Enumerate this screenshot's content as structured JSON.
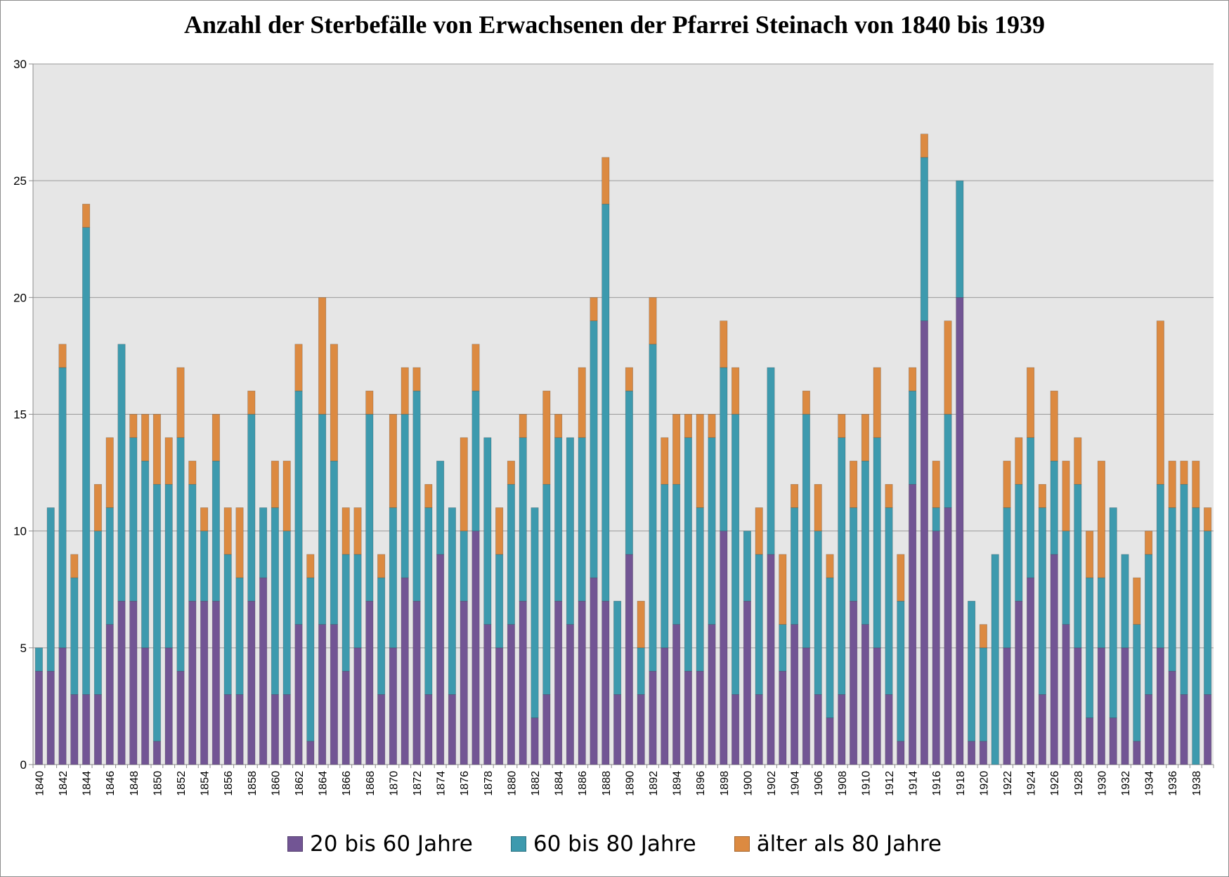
{
  "colors": {
    "s1": "#725594",
    "s2": "#3d9aae",
    "s3": "#dc8a41",
    "plot_bg": "#e6e6e6",
    "grid": "#9a9a9a"
  },
  "chart_data": {
    "type": "bar",
    "stacked": true,
    "title": "Anzahl der Sterbefälle von Erwachsenen der Pfarrei Steinach von 1840 bis 1939",
    "xlabel": "",
    "ylabel": "",
    "ylim": [
      0,
      30
    ],
    "yticks": [
      0,
      5,
      10,
      15,
      20,
      25,
      30
    ],
    "grid": true,
    "legend_position": "bottom",
    "categories": [
      "1840",
      "1841",
      "1842",
      "1843",
      "1844",
      "1845",
      "1846",
      "1847",
      "1848",
      "1849",
      "1850",
      "1851",
      "1852",
      "1853",
      "1854",
      "1855",
      "1856",
      "1857",
      "1858",
      "1859",
      "1860",
      "1861",
      "1862",
      "1863",
      "1864",
      "1865",
      "1866",
      "1867",
      "1868",
      "1869",
      "1870",
      "1871",
      "1872",
      "1873",
      "1874",
      "1875",
      "1876",
      "1877",
      "1878",
      "1879",
      "1880",
      "1881",
      "1882",
      "1883",
      "1884",
      "1885",
      "1886",
      "1887",
      "1888",
      "1889",
      "1890",
      "1891",
      "1892",
      "1893",
      "1894",
      "1895",
      "1896",
      "1897",
      "1898",
      "1899",
      "1900",
      "1901",
      "1902",
      "1903",
      "1904",
      "1905",
      "1906",
      "1907",
      "1908",
      "1909",
      "1910",
      "1911",
      "1912",
      "1913",
      "1914",
      "1915",
      "1916",
      "1917",
      "1918",
      "1919",
      "1920",
      "1921",
      "1922",
      "1923",
      "1924",
      "1925",
      "1926",
      "1927",
      "1928",
      "1929",
      "1930",
      "1931",
      "1932",
      "1933",
      "1934",
      "1935",
      "1936",
      "1937",
      "1938",
      "1939"
    ],
    "xtick_labels": [
      "1840",
      "1842",
      "1844",
      "1846",
      "1848",
      "1850",
      "1852",
      "1854",
      "1856",
      "1858",
      "1860",
      "1862",
      "1864",
      "1866",
      "1868",
      "1870",
      "1872",
      "1874",
      "1876",
      "1878",
      "1880",
      "1882",
      "1884",
      "1886",
      "1888",
      "1890",
      "1892",
      "1894",
      "1896",
      "1898",
      "1900",
      "1902",
      "1904",
      "1906",
      "1908",
      "1910",
      "1912",
      "1914",
      "1916",
      "1918",
      "1920",
      "1922",
      "1924",
      "1926",
      "1928",
      "1930",
      "1932",
      "1934",
      "1936",
      "1938"
    ],
    "series": [
      {
        "name": "20 bis 60 Jahre",
        "color": "#725594",
        "values": [
          4,
          4,
          5,
          3,
          3,
          3,
          6,
          7,
          7,
          5,
          1,
          5,
          4,
          7,
          7,
          7,
          3,
          3,
          7,
          8,
          3,
          3,
          6,
          1,
          6,
          6,
          4,
          5,
          7,
          3,
          5,
          8,
          7,
          3,
          9,
          3,
          7,
          10,
          6,
          5,
          6,
          7,
          2,
          3,
          7,
          6,
          7,
          8,
          7,
          3,
          9,
          3,
          4,
          5,
          6,
          4,
          4,
          6,
          10,
          3,
          7,
          3,
          9,
          4,
          6,
          5,
          3,
          2,
          3,
          7,
          6,
          5,
          3,
          1,
          12,
          19,
          10,
          11,
          20,
          1,
          1,
          0,
          5,
          7,
          8,
          3,
          9,
          6,
          5,
          2,
          5,
          2,
          5,
          1,
          3,
          5,
          4,
          3,
          0,
          3
        ]
      },
      {
        "name": "60 bis 80 Jahre",
        "color": "#3d9aae",
        "values": [
          1,
          7,
          12,
          5,
          20,
          7,
          5,
          11,
          7,
          8,
          11,
          7,
          10,
          5,
          3,
          6,
          6,
          5,
          8,
          3,
          8,
          7,
          10,
          7,
          9,
          7,
          5,
          4,
          8,
          5,
          6,
          7,
          9,
          8,
          4,
          8,
          3,
          6,
          8,
          4,
          6,
          7,
          9,
          9,
          7,
          8,
          7,
          11,
          17,
          4,
          7,
          2,
          14,
          7,
          6,
          10,
          7,
          8,
          7,
          12,
          3,
          6,
          8,
          2,
          5,
          10,
          7,
          6,
          11,
          4,
          7,
          9,
          8,
          6,
          4,
          7,
          1,
          4,
          5,
          6,
          4,
          9,
          6,
          5,
          6,
          8,
          4,
          4,
          7,
          6,
          3,
          9,
          4,
          5,
          6,
          7,
          7,
          9,
          11,
          7
        ]
      },
      {
        "name": "älter als 80 Jahre",
        "color": "#dc8a41",
        "values": [
          0,
          0,
          1,
          1,
          1,
          2,
          3,
          0,
          1,
          2,
          3,
          2,
          3,
          1,
          1,
          2,
          2,
          3,
          1,
          0,
          2,
          3,
          2,
          1,
          5,
          5,
          2,
          2,
          1,
          1,
          4,
          2,
          1,
          1,
          0,
          0,
          4,
          2,
          0,
          2,
          1,
          1,
          0,
          4,
          1,
          0,
          3,
          1,
          2,
          0,
          1,
          2,
          2,
          2,
          3,
          1,
          4,
          1,
          2,
          2,
          0,
          2,
          0,
          3,
          1,
          1,
          2,
          1,
          1,
          2,
          2,
          3,
          1,
          2,
          1,
          1,
          2,
          4,
          0,
          0,
          1,
          0,
          2,
          2,
          3,
          1,
          3,
          3,
          2,
          2,
          5,
          0,
          0,
          2,
          1,
          7,
          2,
          1,
          2,
          1
        ]
      }
    ]
  }
}
